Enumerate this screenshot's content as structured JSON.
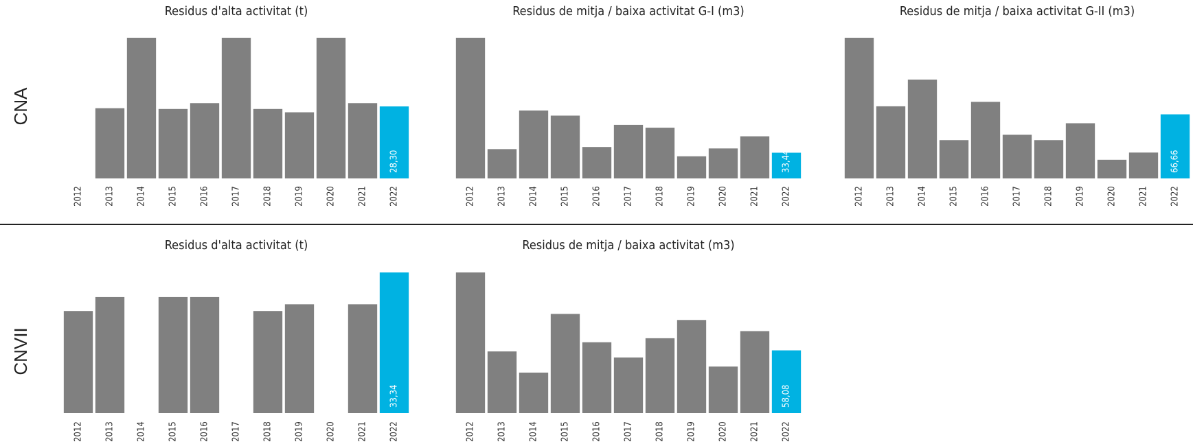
{
  "rows": [
    {
      "label": "CNA",
      "charts": [
        {
          "type": "bar",
          "title": "Residus d'alta activitat (t)",
          "categories": [
            "2012",
            "2013",
            "2014",
            "2015",
            "2016",
            "2017",
            "2018",
            "2019",
            "2020",
            "2021",
            "2022"
          ],
          "values": [
            null,
            27.6,
            55.3,
            27.3,
            29.6,
            55.3,
            27.3,
            26.0,
            55.3,
            29.6,
            28.3
          ],
          "value_labels": [
            null,
            null,
            null,
            null,
            null,
            null,
            null,
            null,
            null,
            null,
            "28,30"
          ],
          "colors": [
            "#808080",
            "#808080",
            "#808080",
            "#808080",
            "#808080",
            "#808080",
            "#808080",
            "#808080",
            "#808080",
            "#808080",
            "#00b2e2"
          ]
        },
        {
          "type": "bar",
          "title": "Residus de mitja / baixa activitat G-I (m3)",
          "categories": [
            "2012",
            "2013",
            "2014",
            "2015",
            "2016",
            "2017",
            "2018",
            "2019",
            "2020",
            "2021",
            "2022"
          ],
          "values": [
            183,
            38.1,
            88.3,
            81.7,
            40.9,
            69.7,
            66,
            28.8,
            39,
            54.8,
            33.44
          ],
          "value_labels": [
            null,
            null,
            null,
            null,
            null,
            null,
            null,
            null,
            null,
            null,
            "33,44"
          ],
          "colors": [
            "#808080",
            "#808080",
            "#808080",
            "#808080",
            "#808080",
            "#808080",
            "#808080",
            "#808080",
            "#808080",
            "#808080",
            "#00b2e2"
          ]
        },
        {
          "type": "bar",
          "title": "Residus de mitja / baixa activitat G-II (m3)",
          "categories": [
            "2012",
            "2013",
            "2014",
            "2015",
            "2016",
            "2017",
            "2018",
            "2019",
            "2020",
            "2021",
            "2022"
          ],
          "values": [
            146.3,
            75,
            102.8,
            39.8,
            79.6,
            45.4,
            39.8,
            57.4,
            19.4,
            26.9,
            66.66
          ],
          "value_labels": [
            null,
            null,
            null,
            null,
            null,
            null,
            null,
            null,
            null,
            null,
            "66,66"
          ],
          "colors": [
            "#808080",
            "#808080",
            "#808080",
            "#808080",
            "#808080",
            "#808080",
            "#808080",
            "#808080",
            "#808080",
            "#808080",
            "#00b2e2"
          ]
        }
      ]
    },
    {
      "label": "CNVII",
      "charts": [
        {
          "type": "bar",
          "title": "Residus d'alta activitat (t)",
          "categories": [
            "2012",
            "2013",
            "2014",
            "2015",
            "2016",
            "2017",
            "2018",
            "2019",
            "2020",
            "2021",
            "2022"
          ],
          "values": [
            24.2,
            27.5,
            null,
            27.5,
            27.5,
            null,
            24.2,
            25.8,
            null,
            25.8,
            33.34
          ],
          "value_labels": [
            null,
            null,
            null,
            null,
            null,
            null,
            null,
            null,
            null,
            null,
            "33,34"
          ],
          "colors": [
            "#808080",
            "#808080",
            "#808080",
            "#808080",
            "#808080",
            "#808080",
            "#808080",
            "#808080",
            "#808080",
            "#808080",
            "#00b2e2"
          ]
        },
        {
          "type": "bar",
          "title": "Residus de mitja / baixa activitat (m3)",
          "categories": [
            "2012",
            "2013",
            "2014",
            "2015",
            "2016",
            "2017",
            "2018",
            "2019",
            "2020",
            "2021",
            "2022"
          ],
          "values": [
            130.2,
            57.1,
            37.5,
            91.8,
            65.6,
            51.5,
            69.3,
            86.2,
            43.1,
            75.9,
            58.08
          ],
          "value_labels": [
            null,
            null,
            null,
            null,
            null,
            null,
            null,
            null,
            null,
            null,
            "58,08"
          ],
          "colors": [
            "#808080",
            "#808080",
            "#808080",
            "#808080",
            "#808080",
            "#808080",
            "#808080",
            "#808080",
            "#808080",
            "#808080",
            "#00b2e2"
          ]
        }
      ]
    }
  ]
}
